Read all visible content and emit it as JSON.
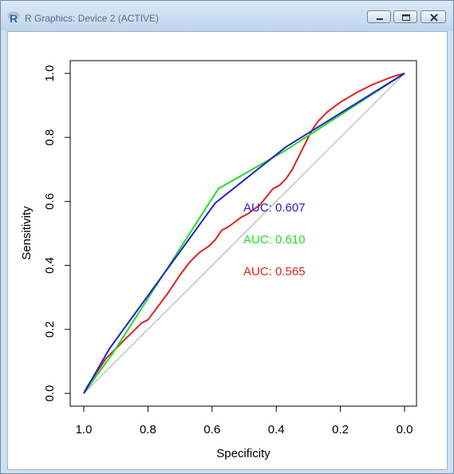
{
  "window": {
    "title": "R Graphics: Device 2 (ACTIVE)",
    "app_icon": "r-logo-icon",
    "controls": [
      "minimize-icon",
      "maximize-icon",
      "close-icon"
    ]
  },
  "chart_data": {
    "type": "line",
    "xlabel": "Specificity",
    "ylabel": "Sensitivity",
    "xlim": [
      1.0,
      0.0
    ],
    "ylim": [
      0.0,
      1.0
    ],
    "x_reversed": true,
    "x_ticks": [
      "1.0",
      "0.8",
      "0.6",
      "0.4",
      "0.2",
      "0.0"
    ],
    "y_ticks": [
      "0.0",
      "0.2",
      "0.4",
      "0.6",
      "0.8",
      "1.0"
    ],
    "grid": false,
    "reference_line": {
      "from": [
        1.0,
        0.0
      ],
      "to": [
        0.0,
        1.0
      ],
      "color": "#aaaaaa"
    },
    "series": [
      {
        "color": "#2222cc",
        "auc_label": "AUC: 0.607",
        "points": [
          [
            1.0,
            0.0
          ],
          [
            0.92,
            0.14
          ],
          [
            0.59,
            0.595
          ],
          [
            0.37,
            0.77
          ],
          [
            0.0,
            1.0
          ]
        ]
      },
      {
        "color": "#22dd22",
        "auc_label": "AUC: 0.610",
        "points": [
          [
            1.0,
            0.0
          ],
          [
            0.91,
            0.125
          ],
          [
            0.58,
            0.64
          ],
          [
            0.37,
            0.76
          ],
          [
            0.0,
            1.0
          ]
        ]
      },
      {
        "color": "#dd2222",
        "auc_label": "AUC: 0.565",
        "points": [
          [
            1.0,
            0.0
          ],
          [
            0.99,
            0.02
          ],
          [
            0.97,
            0.05
          ],
          [
            0.95,
            0.08
          ],
          [
            0.93,
            0.11
          ],
          [
            0.9,
            0.14
          ],
          [
            0.88,
            0.16
          ],
          [
            0.85,
            0.19
          ],
          [
            0.82,
            0.22
          ],
          [
            0.8,
            0.23
          ],
          [
            0.77,
            0.27
          ],
          [
            0.74,
            0.31
          ],
          [
            0.72,
            0.34
          ],
          [
            0.7,
            0.37
          ],
          [
            0.67,
            0.41
          ],
          [
            0.64,
            0.44
          ],
          [
            0.61,
            0.46
          ],
          [
            0.59,
            0.48
          ],
          [
            0.57,
            0.51
          ],
          [
            0.55,
            0.52
          ],
          [
            0.53,
            0.535
          ],
          [
            0.51,
            0.55
          ],
          [
            0.49,
            0.56
          ],
          [
            0.47,
            0.575
          ],
          [
            0.45,
            0.59
          ],
          [
            0.43,
            0.615
          ],
          [
            0.41,
            0.64
          ],
          [
            0.39,
            0.65
          ],
          [
            0.37,
            0.67
          ],
          [
            0.35,
            0.7
          ],
          [
            0.33,
            0.74
          ],
          [
            0.31,
            0.78
          ],
          [
            0.29,
            0.82
          ],
          [
            0.27,
            0.85
          ],
          [
            0.24,
            0.88
          ],
          [
            0.2,
            0.91
          ],
          [
            0.15,
            0.94
          ],
          [
            0.1,
            0.965
          ],
          [
            0.05,
            0.985
          ],
          [
            0.02,
            0.995
          ],
          [
            0.0,
            1.0
          ]
        ]
      }
    ]
  }
}
